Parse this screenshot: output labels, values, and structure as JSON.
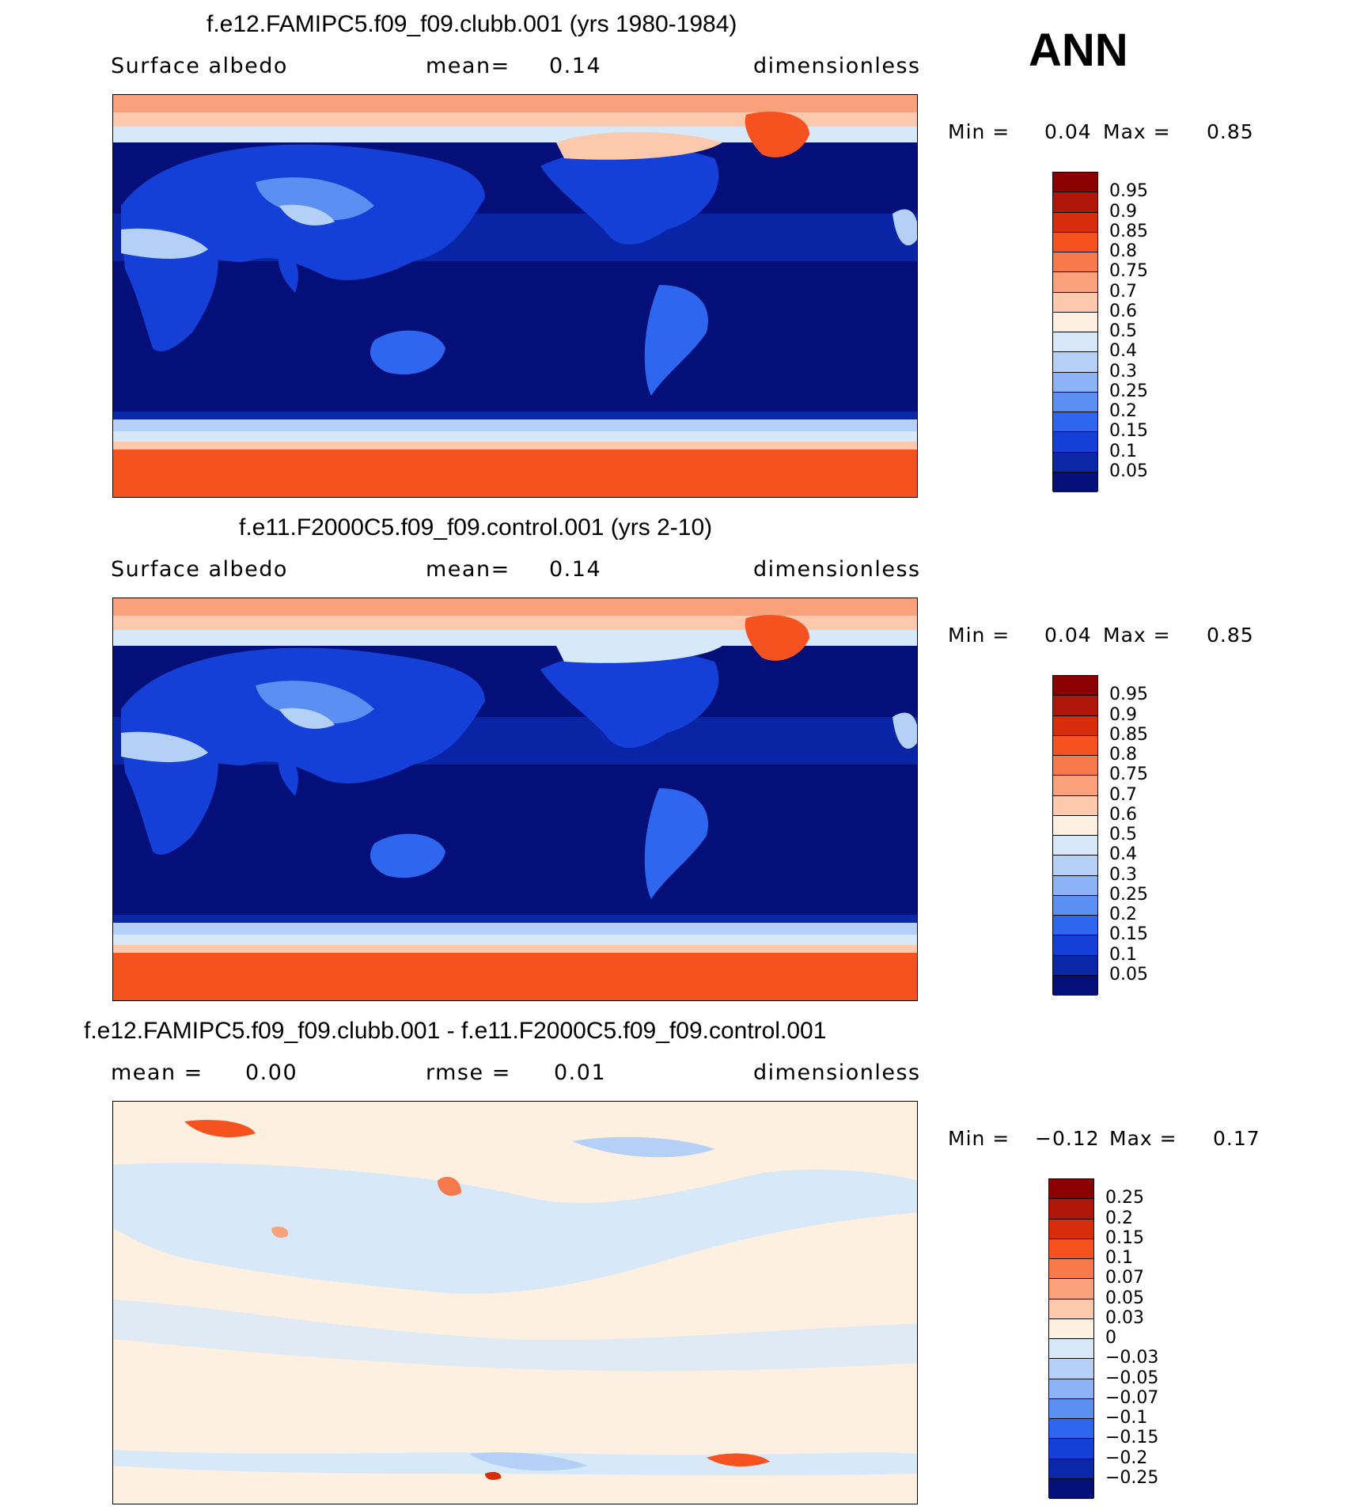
{
  "season": "ANN",
  "panels": [
    {
      "title": "f.e12.FAMIPC5.f09_f09.clubb.001 (yrs 1980-1984)",
      "sub_left": "Surface albedo",
      "sub_mid_label": "mean=",
      "sub_mid_value": "0.14",
      "sub_right": "dimensionless",
      "min_label": "Min =",
      "min_value": "0.04",
      "max_label": "Max =",
      "max_value": "0.85"
    },
    {
      "title": "f.e11.F2000C5.f09_f09.control.001 (yrs 2-10)",
      "sub_left": "Surface albedo",
      "sub_mid_label": "mean=",
      "sub_mid_value": "0.14",
      "sub_right": "dimensionless",
      "min_label": "Min =",
      "min_value": "0.04",
      "max_label": "Max =",
      "max_value": "0.85"
    },
    {
      "title": "f.e12.FAMIPC5.f09_f09.clubb.001 - f.e11.F2000C5.f09_f09.control.001",
      "sub_left_label": "mean =",
      "sub_left_value": "0.00",
      "sub_mid_label": "rmse =",
      "sub_mid_value": "0.01",
      "sub_right": "dimensionless",
      "min_label": "Min =",
      "min_value": "−0.12",
      "max_label": "Max =",
      "max_value": "0.17"
    }
  ],
  "colorbar_abs": {
    "labels": [
      "0.95",
      "0.9",
      "0.85",
      "0.8",
      "0.75",
      "0.7",
      "0.6",
      "0.5",
      "0.4",
      "0.3",
      "0.25",
      "0.2",
      "0.15",
      "0.1",
      "0.05"
    ],
    "colors": [
      "#8b0000",
      "#b0150a",
      "#d82d0a",
      "#f5521f",
      "#f8794b",
      "#faa07a",
      "#fdc9ad",
      "#fdf0e0",
      "#d7e8f9",
      "#b4d0f7",
      "#8bb3f5",
      "#5b8ff2",
      "#2f66ef",
      "#1440d8",
      "#0a27a8",
      "#050f7a"
    ]
  },
  "colorbar_diff": {
    "labels": [
      "0.25",
      "0.2",
      "0.15",
      "0.1",
      "0.07",
      "0.05",
      "0.03",
      "0",
      "−0.03",
      "−0.05",
      "−0.07",
      "−0.1",
      "−0.15",
      "−0.2",
      "−0.25"
    ],
    "colors": [
      "#8b0000",
      "#b0150a",
      "#d82d0a",
      "#f5521f",
      "#f8794b",
      "#faa07a",
      "#fdc9ad",
      "#fdf0e0",
      "#d7e8f9",
      "#b4d0f7",
      "#8bb3f5",
      "#5b8ff2",
      "#2f66ef",
      "#1440d8",
      "#0a27a8",
      "#050f7a"
    ]
  }
}
